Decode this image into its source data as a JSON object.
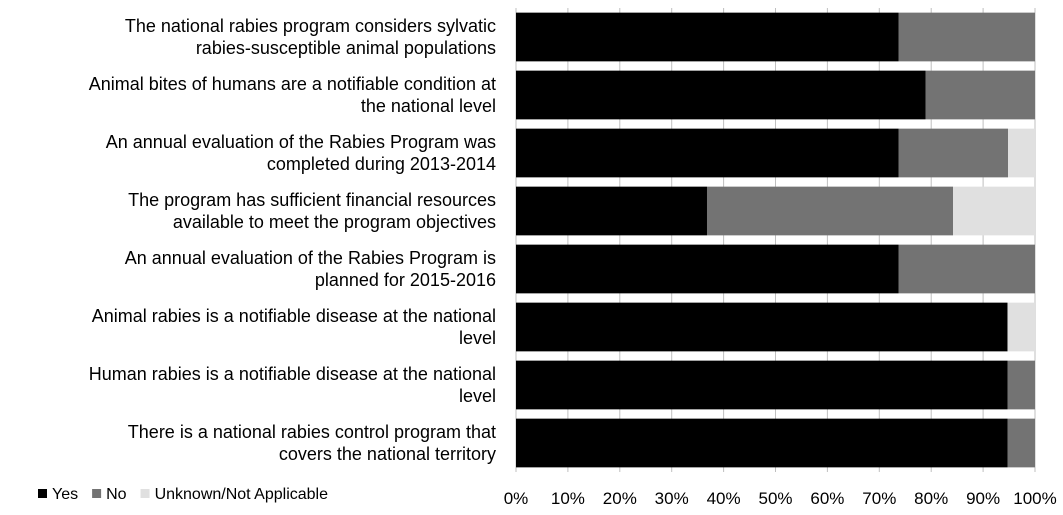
{
  "chart_data": {
    "type": "bar",
    "orientation": "horizontal",
    "stacked": "percent",
    "categories": [
      [
        "The national rabies program considers sylvatic",
        "rabies-susceptible animal populations"
      ],
      [
        "Animal bites of humans are a notifiable condition at",
        "the national level"
      ],
      [
        "An annual evaluation of the Rabies Program was",
        "completed during 2013-2014"
      ],
      [
        "The program has sufficient financial resources",
        "available to meet the program objectives"
      ],
      [
        "An annual evaluation of the Rabies Program is",
        "planned for 2015-2016"
      ],
      [
        "Animal rabies is a notifiable disease at the national",
        "level"
      ],
      [
        "Human rabies is a notifiable disease at the national",
        "level"
      ],
      [
        "There is a national rabies control program that",
        "covers the national territory"
      ]
    ],
    "series": [
      {
        "name": "Yes",
        "color": "#000000",
        "values": [
          73.7,
          78.9,
          73.7,
          36.8,
          73.7,
          94.7,
          94.7,
          94.7
        ]
      },
      {
        "name": "No",
        "color": "#737373",
        "values": [
          26.3,
          21.1,
          21.1,
          47.4,
          26.3,
          0,
          5.3,
          5.3
        ]
      },
      {
        "name": "Unknown/Not Applicable",
        "color": "#e0e0e0",
        "values": [
          0,
          0,
          5.2,
          15.8,
          0,
          5.3,
          0,
          0
        ]
      }
    ],
    "x_ticks": [
      "0%",
      "10%",
      "20%",
      "30%",
      "40%",
      "50%",
      "60%",
      "70%",
      "80%",
      "90%",
      "100%"
    ],
    "xlim": [
      0,
      100
    ],
    "grid": true,
    "legend_position": "bottom-left"
  }
}
